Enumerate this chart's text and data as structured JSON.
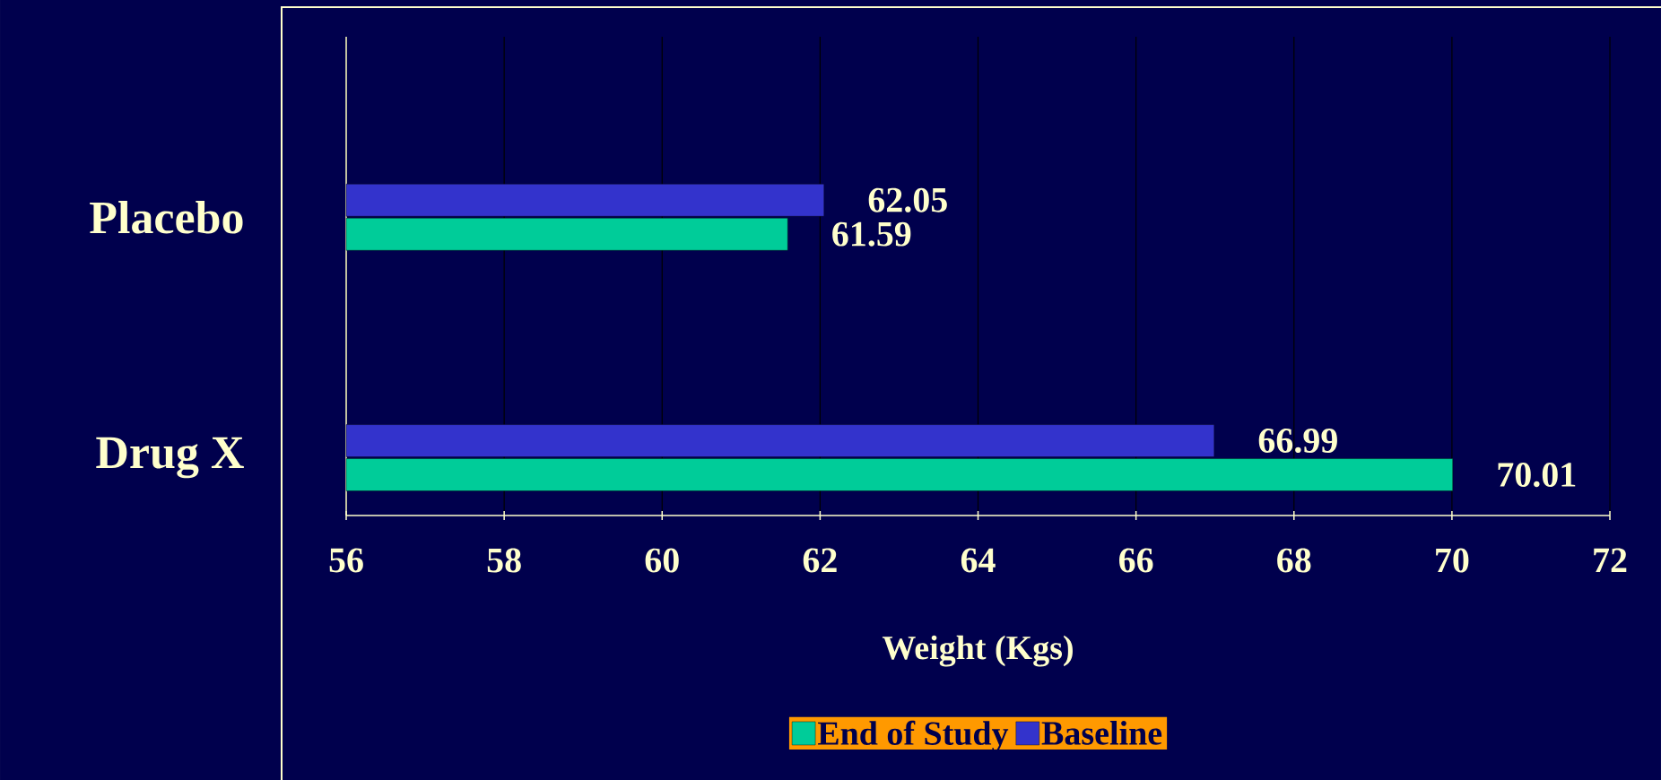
{
  "chart_data": {
    "type": "bar",
    "orientation": "horizontal",
    "xlabel": "Weight (Kgs)",
    "categories": [
      "Placebo",
      "Drug X"
    ],
    "series": [
      {
        "name": "End of Study",
        "color": "#00cc99",
        "values": [
          61.59,
          70.01
        ]
      },
      {
        "name": "Baseline",
        "color": "#3333cc",
        "values": [
          62.05,
          66.99
        ]
      }
    ],
    "xlim": [
      56,
      72
    ],
    "xticks": [
      56,
      58,
      60,
      62,
      64,
      66,
      68,
      70,
      72
    ],
    "grid": "x",
    "legend": "bottom",
    "data_labels": true
  }
}
